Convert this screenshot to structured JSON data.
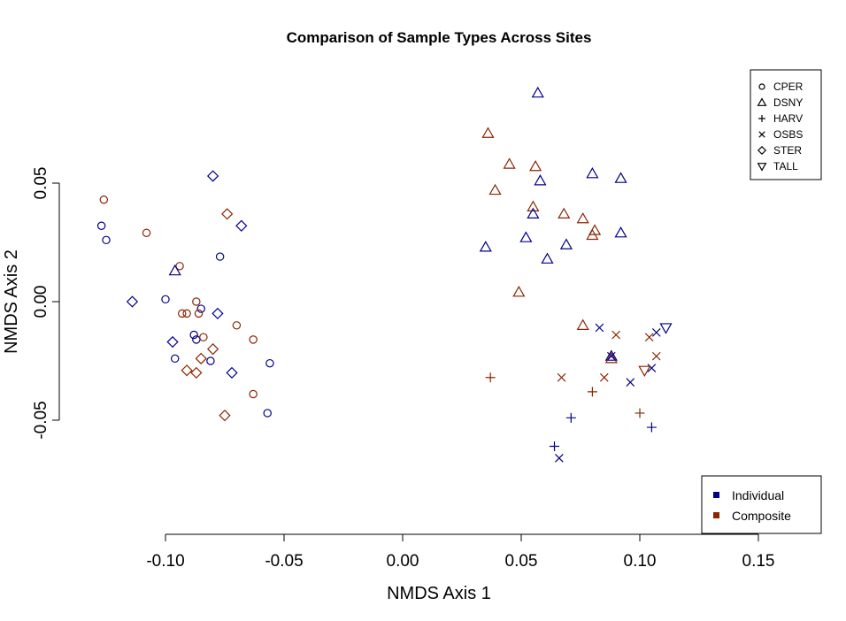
{
  "chart_data": {
    "type": "scatter",
    "title": "Comparison of Sample Types Across Sites",
    "xlabel": "NMDS Axis 1",
    "ylabel": "NMDS Axis 2",
    "xlim": [
      -0.125,
      0.17
    ],
    "ylim": [
      -0.1,
      0.1
    ],
    "xticks": [
      -0.1,
      -0.05,
      0.0,
      0.05,
      0.1,
      0.15
    ],
    "xtick_labels": [
      "-0.10",
      "-0.05",
      "0.00",
      "0.05",
      "0.10",
      "0.15"
    ],
    "yticks": [
      0.05,
      0.0,
      -0.05
    ],
    "ytick_labels": [
      "0.05",
      "0.00",
      "-0.05"
    ],
    "grid": false,
    "sites": [
      {
        "name": "CPER",
        "symbol": "circle"
      },
      {
        "name": "DSNY",
        "symbol": "triangle-up"
      },
      {
        "name": "HARV",
        "symbol": "plus"
      },
      {
        "name": "OSBS",
        "symbol": "cross"
      },
      {
        "name": "STER",
        "symbol": "diamond"
      },
      {
        "name": "TALL",
        "symbol": "triangle-down"
      }
    ],
    "sample_types": [
      {
        "name": "Individual",
        "color": "#00008b"
      },
      {
        "name": "Composite",
        "color": "#8b2500"
      }
    ],
    "site_legend_position": "top-right",
    "type_legend_position": "bottom-right",
    "points": [
      {
        "x": -0.127,
        "y": 0.032,
        "site": "CPER",
        "type": "Individual"
      },
      {
        "x": -0.125,
        "y": 0.026,
        "site": "CPER",
        "type": "Individual"
      },
      {
        "x": -0.126,
        "y": 0.043,
        "site": "CPER",
        "type": "Composite"
      },
      {
        "x": -0.108,
        "y": 0.029,
        "site": "CPER",
        "type": "Composite"
      },
      {
        "x": -0.077,
        "y": 0.019,
        "site": "CPER",
        "type": "Individual"
      },
      {
        "x": -0.094,
        "y": 0.015,
        "site": "CPER",
        "type": "Composite"
      },
      {
        "x": -0.1,
        "y": 0.001,
        "site": "CPER",
        "type": "Individual"
      },
      {
        "x": -0.087,
        "y": 0.0,
        "site": "CPER",
        "type": "Composite"
      },
      {
        "x": -0.085,
        "y": -0.003,
        "site": "CPER",
        "type": "Individual"
      },
      {
        "x": -0.093,
        "y": -0.005,
        "site": "CPER",
        "type": "Composite"
      },
      {
        "x": -0.091,
        "y": -0.005,
        "site": "CPER",
        "type": "Composite"
      },
      {
        "x": -0.086,
        "y": -0.005,
        "site": "CPER",
        "type": "Composite"
      },
      {
        "x": -0.07,
        "y": -0.01,
        "site": "CPER",
        "type": "Composite"
      },
      {
        "x": -0.088,
        "y": -0.014,
        "site": "CPER",
        "type": "Individual"
      },
      {
        "x": -0.087,
        "y": -0.016,
        "site": "CPER",
        "type": "Individual"
      },
      {
        "x": -0.084,
        "y": -0.015,
        "site": "CPER",
        "type": "Composite"
      },
      {
        "x": -0.063,
        "y": -0.016,
        "site": "CPER",
        "type": "Composite"
      },
      {
        "x": -0.096,
        "y": -0.024,
        "site": "CPER",
        "type": "Individual"
      },
      {
        "x": -0.081,
        "y": -0.025,
        "site": "CPER",
        "type": "Individual"
      },
      {
        "x": -0.056,
        "y": -0.026,
        "site": "CPER",
        "type": "Individual"
      },
      {
        "x": -0.063,
        "y": -0.039,
        "site": "CPER",
        "type": "Composite"
      },
      {
        "x": -0.057,
        "y": -0.047,
        "site": "CPER",
        "type": "Individual"
      },
      {
        "x": -0.08,
        "y": 0.053,
        "site": "STER",
        "type": "Individual"
      },
      {
        "x": -0.074,
        "y": 0.037,
        "site": "STER",
        "type": "Composite"
      },
      {
        "x": -0.068,
        "y": 0.032,
        "site": "STER",
        "type": "Individual"
      },
      {
        "x": -0.114,
        "y": 0.0,
        "site": "STER",
        "type": "Individual"
      },
      {
        "x": -0.078,
        "y": -0.005,
        "site": "STER",
        "type": "Individual"
      },
      {
        "x": -0.097,
        "y": -0.017,
        "site": "STER",
        "type": "Individual"
      },
      {
        "x": -0.08,
        "y": -0.02,
        "site": "STER",
        "type": "Composite"
      },
      {
        "x": -0.085,
        "y": -0.024,
        "site": "STER",
        "type": "Composite"
      },
      {
        "x": -0.091,
        "y": -0.029,
        "site": "STER",
        "type": "Composite"
      },
      {
        "x": -0.087,
        "y": -0.03,
        "site": "STER",
        "type": "Composite"
      },
      {
        "x": -0.072,
        "y": -0.03,
        "site": "STER",
        "type": "Individual"
      },
      {
        "x": -0.075,
        "y": -0.048,
        "site": "STER",
        "type": "Composite"
      },
      {
        "x": -0.096,
        "y": 0.013,
        "site": "DSNY",
        "type": "Individual"
      },
      {
        "x": 0.057,
        "y": 0.088,
        "site": "DSNY",
        "type": "Individual"
      },
      {
        "x": 0.036,
        "y": 0.071,
        "site": "DSNY",
        "type": "Composite"
      },
      {
        "x": 0.045,
        "y": 0.058,
        "site": "DSNY",
        "type": "Composite"
      },
      {
        "x": 0.056,
        "y": 0.057,
        "site": "DSNY",
        "type": "Composite"
      },
      {
        "x": 0.08,
        "y": 0.054,
        "site": "DSNY",
        "type": "Individual"
      },
      {
        "x": 0.092,
        "y": 0.052,
        "site": "DSNY",
        "type": "Individual"
      },
      {
        "x": 0.058,
        "y": 0.051,
        "site": "DSNY",
        "type": "Individual"
      },
      {
        "x": 0.039,
        "y": 0.047,
        "site": "DSNY",
        "type": "Composite"
      },
      {
        "x": 0.055,
        "y": 0.04,
        "site": "DSNY",
        "type": "Composite"
      },
      {
        "x": 0.055,
        "y": 0.037,
        "site": "DSNY",
        "type": "Individual"
      },
      {
        "x": 0.068,
        "y": 0.037,
        "site": "DSNY",
        "type": "Composite"
      },
      {
        "x": 0.076,
        "y": 0.035,
        "site": "DSNY",
        "type": "Composite"
      },
      {
        "x": 0.081,
        "y": 0.03,
        "site": "DSNY",
        "type": "Composite"
      },
      {
        "x": 0.092,
        "y": 0.029,
        "site": "DSNY",
        "type": "Individual"
      },
      {
        "x": 0.08,
        "y": 0.028,
        "site": "DSNY",
        "type": "Composite"
      },
      {
        "x": 0.052,
        "y": 0.027,
        "site": "DSNY",
        "type": "Individual"
      },
      {
        "x": 0.069,
        "y": 0.024,
        "site": "DSNY",
        "type": "Individual"
      },
      {
        "x": 0.035,
        "y": 0.023,
        "site": "DSNY",
        "type": "Individual"
      },
      {
        "x": 0.061,
        "y": 0.018,
        "site": "DSNY",
        "type": "Individual"
      },
      {
        "x": 0.049,
        "y": 0.004,
        "site": "DSNY",
        "type": "Composite"
      },
      {
        "x": 0.076,
        "y": -0.01,
        "site": "DSNY",
        "type": "Composite"
      },
      {
        "x": 0.088,
        "y": -0.023,
        "site": "DSNY",
        "type": "Individual"
      },
      {
        "x": 0.088,
        "y": -0.024,
        "site": "DSNY",
        "type": "Composite"
      },
      {
        "x": 0.037,
        "y": -0.032,
        "site": "HARV",
        "type": "Composite"
      },
      {
        "x": 0.08,
        "y": -0.038,
        "site": "HARV",
        "type": "Composite"
      },
      {
        "x": 0.1,
        "y": -0.047,
        "site": "HARV",
        "type": "Composite"
      },
      {
        "x": 0.071,
        "y": -0.049,
        "site": "HARV",
        "type": "Individual"
      },
      {
        "x": 0.105,
        "y": -0.053,
        "site": "HARV",
        "type": "Individual"
      },
      {
        "x": 0.064,
        "y": -0.061,
        "site": "HARV",
        "type": "Individual"
      },
      {
        "x": 0.083,
        "y": -0.011,
        "site": "OSBS",
        "type": "Individual"
      },
      {
        "x": 0.107,
        "y": -0.013,
        "site": "OSBS",
        "type": "Individual"
      },
      {
        "x": 0.104,
        "y": -0.015,
        "site": "OSBS",
        "type": "Composite"
      },
      {
        "x": 0.09,
        "y": -0.014,
        "site": "OSBS",
        "type": "Composite"
      },
      {
        "x": 0.107,
        "y": -0.023,
        "site": "OSBS",
        "type": "Composite"
      },
      {
        "x": 0.088,
        "y": -0.023,
        "site": "OSBS",
        "type": "Individual"
      },
      {
        "x": 0.105,
        "y": -0.028,
        "site": "OSBS",
        "type": "Individual"
      },
      {
        "x": 0.067,
        "y": -0.032,
        "site": "OSBS",
        "type": "Composite"
      },
      {
        "x": 0.085,
        "y": -0.032,
        "site": "OSBS",
        "type": "Composite"
      },
      {
        "x": 0.096,
        "y": -0.034,
        "site": "OSBS",
        "type": "Individual"
      },
      {
        "x": 0.066,
        "y": -0.066,
        "site": "OSBS",
        "type": "Individual"
      },
      {
        "x": 0.111,
        "y": -0.011,
        "site": "TALL",
        "type": "Individual"
      },
      {
        "x": 0.102,
        "y": -0.029,
        "site": "TALL",
        "type": "Composite"
      }
    ]
  }
}
